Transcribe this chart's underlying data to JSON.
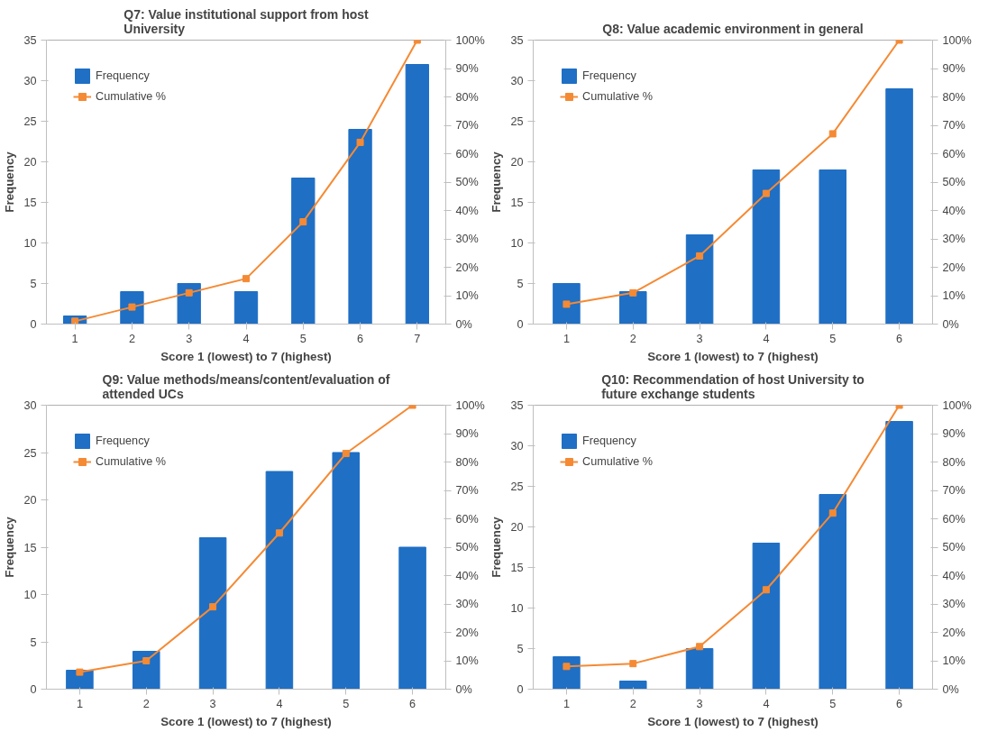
{
  "chart_data": [
    {
      "type": "bar",
      "title": "Q7: Value institutional support from host University",
      "xlabel": "Score 1 (lowest) to 7 (highest)",
      "ylabel": "Frequency",
      "categories": [
        "1",
        "2",
        "3",
        "4",
        "5",
        "6",
        "7"
      ],
      "series": [
        {
          "name": "Frequency",
          "color": "#1f6fc5",
          "values": [
            1,
            4,
            5,
            4,
            18,
            24,
            32
          ]
        },
        {
          "name": "Cumulative %",
          "type": "line",
          "axis": "y2",
          "color": "#f58a34",
          "marker": "square",
          "values": [
            1,
            6,
            11,
            16,
            36,
            64,
            100
          ]
        }
      ],
      "ylim": [
        0,
        35
      ],
      "yticks": [
        0,
        5,
        10,
        15,
        20,
        25,
        30,
        35
      ],
      "y2lim": [
        0,
        100
      ],
      "y2ticks": [
        {
          "value": 0,
          "label": "0%"
        },
        {
          "value": 10,
          "label": "10%"
        },
        {
          "value": 20,
          "label": "20%"
        },
        {
          "value": 30,
          "label": "30%"
        },
        {
          "value": 40,
          "label": "40%"
        },
        {
          "value": 50,
          "label": "50%"
        },
        {
          "value": 60,
          "label": "60%"
        },
        {
          "value": 70,
          "label": "70%"
        },
        {
          "value": 80,
          "label": "80%"
        },
        {
          "value": 90,
          "label": "90%"
        },
        {
          "value": 100,
          "label": "100%"
        }
      ],
      "legend": "top left",
      "grid": false
    },
    {
      "type": "bar",
      "title": "Q8: Value academic environment in general",
      "xlabel": "Score 1 (lowest) to 7 (highest)",
      "ylabel": "Frequency",
      "categories": [
        "1",
        "2",
        "3",
        "4",
        "5",
        "6"
      ],
      "series": [
        {
          "name": "Frequency",
          "color": "#1f6fc5",
          "values": [
            5,
            4,
            11,
            19,
            19,
            29
          ]
        },
        {
          "name": "Cumulative %",
          "type": "line",
          "axis": "y2",
          "color": "#f58a34",
          "marker": "square",
          "values": [
            7,
            11,
            24,
            46,
            67,
            100
          ]
        }
      ],
      "ylim": [
        0,
        35
      ],
      "yticks": [
        0,
        5,
        10,
        15,
        20,
        25,
        30,
        35
      ],
      "y2lim": [
        0,
        100
      ],
      "y2ticks": [
        {
          "value": 0,
          "label": "0%"
        },
        {
          "value": 10,
          "label": "10%"
        },
        {
          "value": 20,
          "label": "20%"
        },
        {
          "value": 30,
          "label": "30%"
        },
        {
          "value": 40,
          "label": "40%"
        },
        {
          "value": 50,
          "label": "50%"
        },
        {
          "value": 60,
          "label": "60%"
        },
        {
          "value": 70,
          "label": "70%"
        },
        {
          "value": 80,
          "label": "80%"
        },
        {
          "value": 90,
          "label": "90%"
        },
        {
          "value": 100,
          "label": "100%"
        }
      ],
      "legend": "top left",
      "grid": false
    },
    {
      "type": "bar",
      "title": "Q9: Value methods/means/content/evaluation of attended UCs",
      "xlabel": "Score 1 (lowest) to 7 (highest)",
      "ylabel": "Frequency",
      "categories": [
        "1",
        "2",
        "3",
        "4",
        "5",
        "6"
      ],
      "series": [
        {
          "name": "Frequency",
          "color": "#1f6fc5",
          "values": [
            2,
            4,
            16,
            23,
            25,
            15
          ]
        },
        {
          "name": "Cumulative %",
          "type": "line",
          "axis": "y2",
          "color": "#f58a34",
          "marker": "square",
          "values": [
            6,
            10,
            29,
            55,
            83,
            100
          ]
        }
      ],
      "ylim": [
        0,
        30
      ],
      "yticks": [
        0,
        5,
        10,
        15,
        20,
        25,
        30
      ],
      "y2lim": [
        0,
        100
      ],
      "y2ticks": [
        {
          "value": 0,
          "label": "0%"
        },
        {
          "value": 10,
          "label": "10%"
        },
        {
          "value": 20,
          "label": "20%"
        },
        {
          "value": 30,
          "label": "30%"
        },
        {
          "value": 40,
          "label": "40%"
        },
        {
          "value": 50,
          "label": "50%"
        },
        {
          "value": 60,
          "label": "60%"
        },
        {
          "value": 70,
          "label": "70%"
        },
        {
          "value": 80,
          "label": "80%"
        },
        {
          "value": 90,
          "label": "90%"
        },
        {
          "value": 100,
          "label": "100%"
        }
      ],
      "legend": "top left",
      "grid": false
    },
    {
      "type": "bar",
      "title": "Q10: Recommendation of host University to future exchange students",
      "xlabel": "Score 1 (lowest) to 7 (highest)",
      "ylabel": "Frequency",
      "categories": [
        "1",
        "2",
        "3",
        "4",
        "5",
        "6"
      ],
      "series": [
        {
          "name": "Frequency",
          "color": "#1f6fc5",
          "values": [
            4,
            1,
            5,
            18,
            24,
            33
          ]
        },
        {
          "name": "Cumulative %",
          "type": "line",
          "axis": "y2",
          "color": "#f58a34",
          "marker": "square",
          "values": [
            8,
            9,
            15,
            35,
            62,
            100
          ]
        }
      ],
      "ylim": [
        0,
        35
      ],
      "yticks": [
        0,
        5,
        10,
        15,
        20,
        25,
        30,
        35
      ],
      "y2lim": [
        0,
        100
      ],
      "y2ticks": [
        {
          "value": 0,
          "label": "0%"
        },
        {
          "value": 10,
          "label": "10%"
        },
        {
          "value": 20,
          "label": "20%"
        },
        {
          "value": 30,
          "label": "30%"
        },
        {
          "value": 40,
          "label": "40%"
        },
        {
          "value": 50,
          "label": "50%"
        },
        {
          "value": 60,
          "label": "60%"
        },
        {
          "value": 70,
          "label": "70%"
        },
        {
          "value": 80,
          "label": "80%"
        },
        {
          "value": 90,
          "label": "90%"
        },
        {
          "value": 100,
          "label": "100%"
        }
      ],
      "legend": "top left",
      "grid": false
    }
  ]
}
